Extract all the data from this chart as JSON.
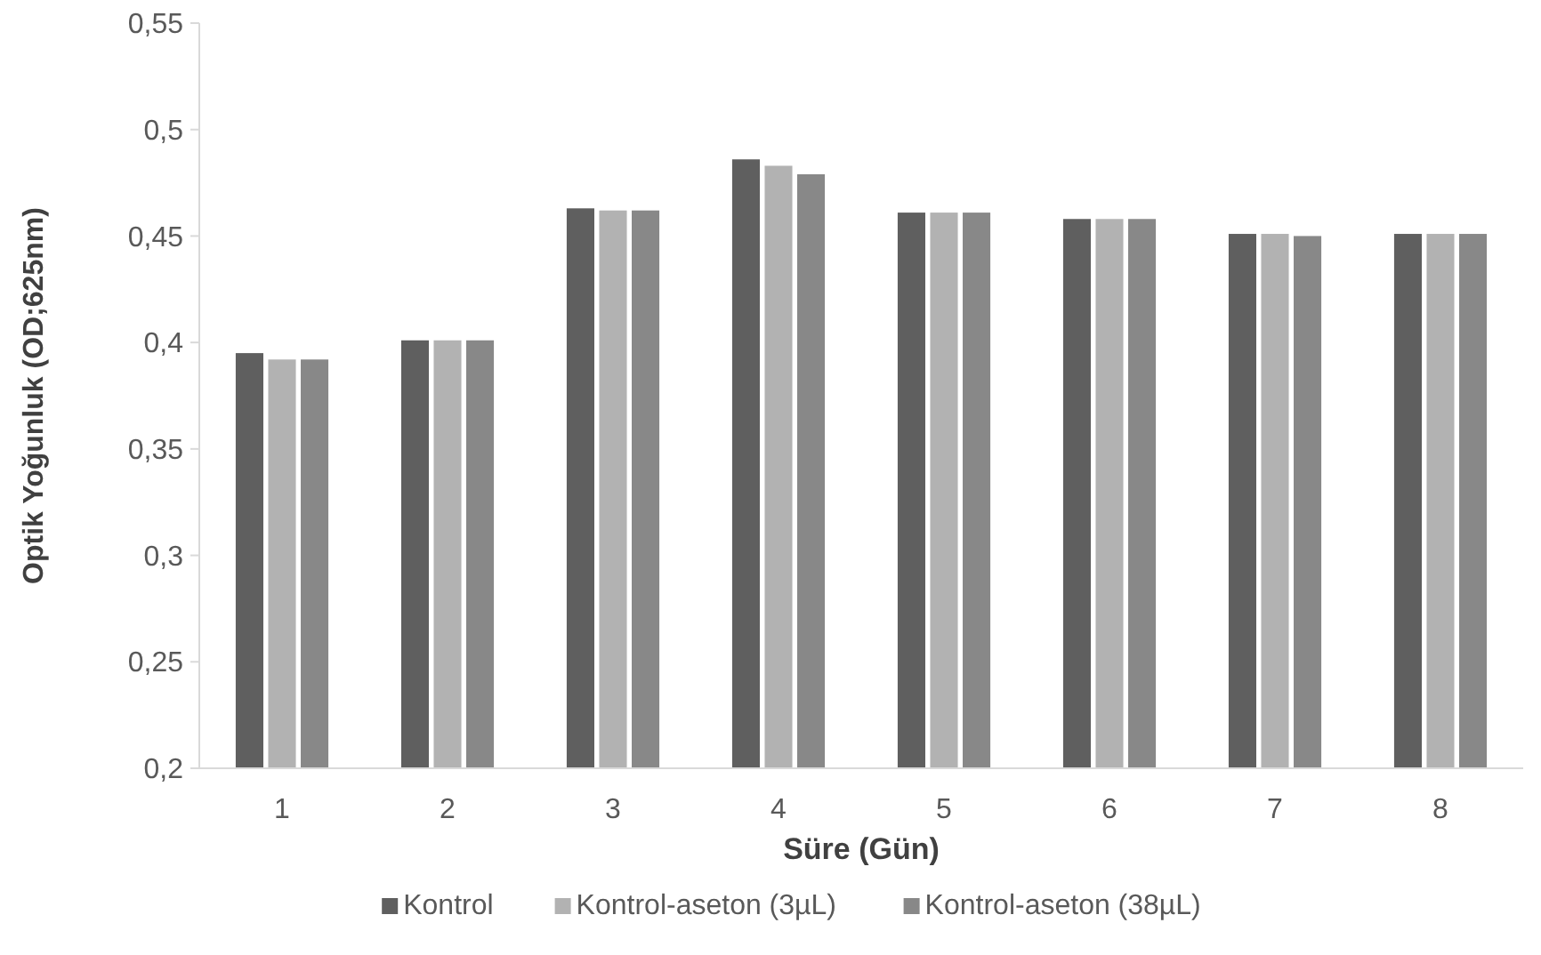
{
  "chart_data": {
    "type": "bar",
    "xlabel": "Süre (Gün)",
    "ylabel": "Optik Yoğunluk (OD;625nm)",
    "categories": [
      "1",
      "2",
      "3",
      "4",
      "5",
      "6",
      "7",
      "8"
    ],
    "series": [
      {
        "name": "Kontrol",
        "color": "#5f5f5f",
        "values": [
          0.395,
          0.401,
          0.463,
          0.486,
          0.461,
          0.458,
          0.451,
          0.451
        ]
      },
      {
        "name": "Kontrol-aseton (3µL)",
        "color": "#b2b2b2",
        "values": [
          0.392,
          0.401,
          0.462,
          0.483,
          0.461,
          0.458,
          0.451,
          0.451
        ]
      },
      {
        "name": "Kontrol-aseton (38µL)",
        "color": "#888888",
        "values": [
          0.392,
          0.401,
          0.462,
          0.479,
          0.461,
          0.458,
          0.45,
          0.451
        ]
      }
    ],
    "ylim": [
      0.2,
      0.55
    ],
    "yticks": [
      {
        "value": 0.2,
        "label": "0,2"
      },
      {
        "value": 0.25,
        "label": "0,25"
      },
      {
        "value": 0.3,
        "label": "0,3"
      },
      {
        "value": 0.35,
        "label": "0,35"
      },
      {
        "value": 0.4,
        "label": "0,4"
      },
      {
        "value": 0.45,
        "label": "0,45"
      },
      {
        "value": 0.5,
        "label": "0,5"
      },
      {
        "value": 0.55,
        "label": "0,55"
      }
    ],
    "grid": false,
    "legend": "bottom"
  }
}
